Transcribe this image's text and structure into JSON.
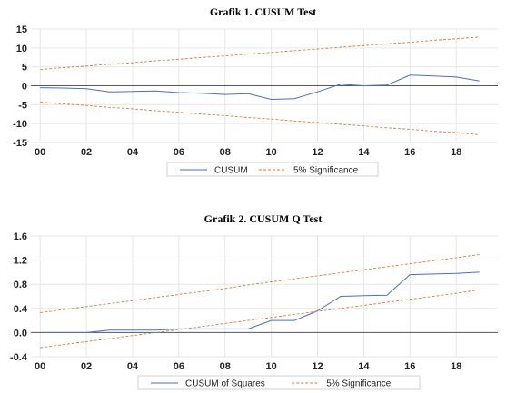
{
  "chart_data": [
    {
      "type": "line",
      "title": "Grafik 1. CUSUM Test",
      "xlabel": "",
      "ylabel": "",
      "x": [
        2000,
        2001,
        2002,
        2003,
        2004,
        2005,
        2006,
        2007,
        2008,
        2009,
        2010,
        2011,
        2012,
        2013,
        2014,
        2015,
        2016,
        2017,
        2018,
        2019
      ],
      "xticks": [
        "00",
        "02",
        "04",
        "06",
        "08",
        "10",
        "12",
        "14",
        "16",
        "18"
      ],
      "xlim": [
        1999.6,
        2019.8
      ],
      "ylim": [
        -15,
        15
      ],
      "yticks": [
        -15,
        -10,
        -5,
        0,
        5,
        10,
        15
      ],
      "grid": true,
      "legend": "bottom-center",
      "series": [
        {
          "name": "CUSUM",
          "color": "#4472c4",
          "style": "solid",
          "values": [
            -0.5,
            -0.6,
            -0.8,
            -1.6,
            -1.5,
            -1.4,
            -1.8,
            -2.0,
            -2.3,
            -2.1,
            -3.6,
            -3.4,
            -1.6,
            0.4,
            0.0,
            0.2,
            2.8,
            2.6,
            2.3,
            1.3
          ]
        },
        {
          "name": "5% Significance",
          "color": "#e07b39",
          "style": "dashed",
          "values": [
            4.3,
            4.8,
            5.2,
            5.7,
            6.1,
            6.6,
            7.0,
            7.5,
            7.9,
            8.4,
            8.8,
            9.3,
            9.7,
            10.2,
            10.6,
            11.1,
            11.5,
            12.0,
            12.4,
            12.9
          ]
        },
        {
          "name": "5% Significance",
          "color": "#e07b39",
          "style": "dashed",
          "legend": false,
          "values": [
            -4.3,
            -4.8,
            -5.2,
            -5.7,
            -6.1,
            -6.6,
            -7.0,
            -7.5,
            -7.9,
            -8.4,
            -8.8,
            -9.3,
            -9.7,
            -10.2,
            -10.6,
            -11.1,
            -11.5,
            -12.0,
            -12.4,
            -12.9
          ]
        }
      ]
    },
    {
      "type": "line",
      "title": "Grafik 2. CUSUM Q Test",
      "xlabel": "",
      "ylabel": "",
      "x": [
        2000,
        2001,
        2002,
        2003,
        2004,
        2005,
        2006,
        2007,
        2008,
        2009,
        2010,
        2011,
        2012,
        2013,
        2014,
        2015,
        2016,
        2017,
        2018,
        2019
      ],
      "xticks": [
        "00",
        "02",
        "04",
        "06",
        "08",
        "10",
        "12",
        "14",
        "16",
        "18"
      ],
      "xlim": [
        1999.6,
        2019.8
      ],
      "ylim": [
        -0.4,
        1.6
      ],
      "yticks": [
        -0.4,
        0.0,
        0.4,
        0.8,
        1.2,
        1.6
      ],
      "grid": true,
      "legend": "bottom-center",
      "series": [
        {
          "name": "CUSUM of Squares",
          "color": "#4472c4",
          "style": "solid",
          "values": [
            0.0,
            0.0,
            0.0,
            0.04,
            0.04,
            0.04,
            0.06,
            0.06,
            0.06,
            0.06,
            0.2,
            0.2,
            0.36,
            0.6,
            0.61,
            0.62,
            0.96,
            0.97,
            0.98,
            1.0
          ]
        },
        {
          "name": "5% Significance",
          "color": "#e07b39",
          "style": "dashed",
          "values": [
            0.33,
            0.38,
            0.43,
            0.48,
            0.53,
            0.58,
            0.63,
            0.68,
            0.73,
            0.79,
            0.84,
            0.89,
            0.94,
            0.99,
            1.04,
            1.09,
            1.14,
            1.19,
            1.24,
            1.29
          ]
        },
        {
          "name": "5% Significance",
          "color": "#e07b39",
          "style": "dashed",
          "legend": false,
          "values": [
            -0.25,
            -0.2,
            -0.15,
            -0.1,
            -0.05,
            0.0,
            0.05,
            0.1,
            0.15,
            0.2,
            0.25,
            0.3,
            0.35,
            0.4,
            0.45,
            0.5,
            0.55,
            0.6,
            0.65,
            0.71
          ]
        }
      ]
    }
  ]
}
